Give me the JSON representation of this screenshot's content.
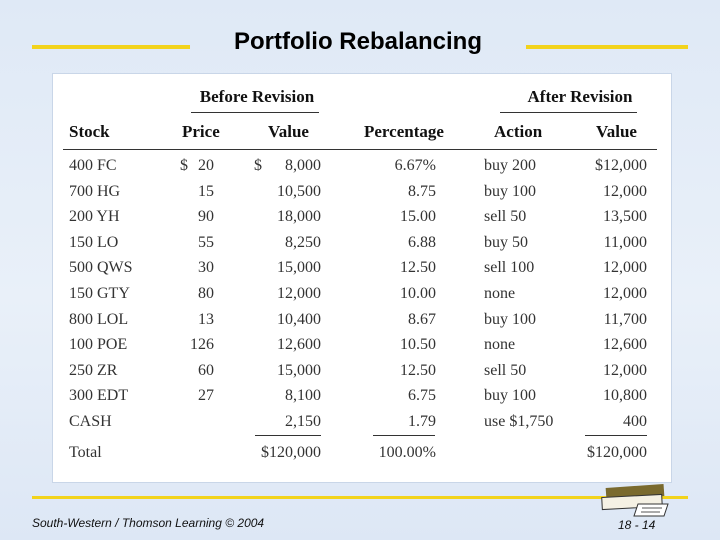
{
  "slide": {
    "title": "Portfolio Rebalancing",
    "footer_left": "South-Western / Thomson Learning © 2004",
    "footer_right": "18 - 14"
  },
  "colors": {
    "accent_yellow": "#f2d31c",
    "background": "#dfe9f6"
  },
  "table": {
    "group_headers": {
      "before": "Before Revision",
      "after": "After Revision"
    },
    "columns": {
      "stock": "Stock",
      "price": "Price",
      "value": "Value",
      "percentage": "Percentage",
      "action": "Action",
      "after_value": "Value"
    },
    "rows": [
      {
        "stock": "400 FC",
        "price_cur": "$",
        "price": "20",
        "value_cur": "$",
        "value": "8,000",
        "pct": "6.67%",
        "action": "buy 200",
        "after": "$12,000"
      },
      {
        "stock": "700 HG",
        "price_cur": "",
        "price": "15",
        "value_cur": "",
        "value": "10,500",
        "pct": "8.75",
        "action": "buy 100",
        "after": "12,000"
      },
      {
        "stock": "200 YH",
        "price_cur": "",
        "price": "90",
        "value_cur": "",
        "value": "18,000",
        "pct": "15.00",
        "action": "sell 50",
        "after": "13,500"
      },
      {
        "stock": "150 LO",
        "price_cur": "",
        "price": "55",
        "value_cur": "",
        "value": "8,250",
        "pct": "6.88",
        "action": "buy 50",
        "after": "11,000"
      },
      {
        "stock": "500 QWS",
        "price_cur": "",
        "price": "30",
        "value_cur": "",
        "value": "15,000",
        "pct": "12.50",
        "action": "sell 100",
        "after": "12,000"
      },
      {
        "stock": "150 GTY",
        "price_cur": "",
        "price": "80",
        "value_cur": "",
        "value": "12,000",
        "pct": "10.00",
        "action": "none",
        "after": "12,000"
      },
      {
        "stock": "800 LOL",
        "price_cur": "",
        "price": "13",
        "value_cur": "",
        "value": "10,400",
        "pct": "8.67",
        "action": "buy 100",
        "after": "11,700"
      },
      {
        "stock": "100 POE",
        "price_cur": "",
        "price": "126",
        "value_cur": "",
        "value": "12,600",
        "pct": "10.50",
        "action": "none",
        "after": "12,600"
      },
      {
        "stock": "250 ZR",
        "price_cur": "",
        "price": "60",
        "value_cur": "",
        "value": "15,000",
        "pct": "12.50",
        "action": "sell 50",
        "after": "12,000"
      },
      {
        "stock": "300 EDT",
        "price_cur": "",
        "price": "27",
        "value_cur": "",
        "value": "8,100",
        "pct": "6.75",
        "action": "buy 100",
        "after": "10,800"
      },
      {
        "stock": "CASH",
        "price_cur": "",
        "price": "",
        "value_cur": "",
        "value": "2,150",
        "pct": "1.79",
        "action": "use $1,750",
        "after": "400"
      }
    ],
    "total": {
      "label": "Total",
      "value": "$120,000",
      "pct": "100.00%",
      "after": "$120,000"
    }
  }
}
